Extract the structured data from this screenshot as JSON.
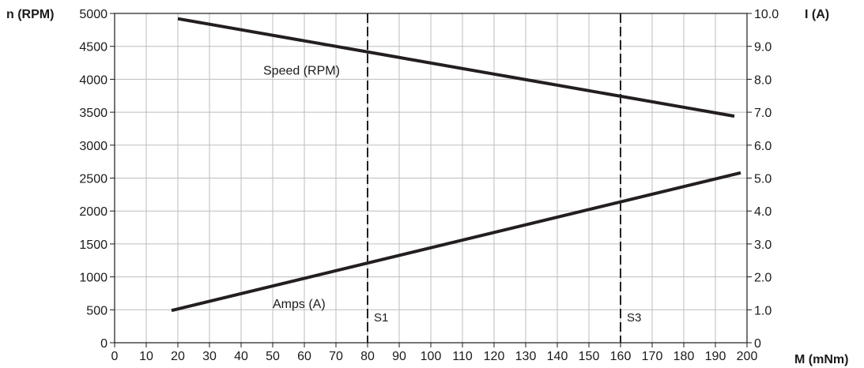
{
  "chart_data": {
    "type": "line",
    "xlabel": "M (mNm)",
    "ylabel_left": "n (RPM)",
    "ylabel_right": "I (A)",
    "xlim": [
      0,
      200
    ],
    "ylim_left": [
      0,
      5000
    ],
    "ylim_right": [
      0,
      10
    ],
    "x_ticks": [
      "0",
      "10",
      "20",
      "30",
      "40",
      "50",
      "60",
      "70",
      "80",
      "90",
      "100",
      "110",
      "120",
      "130",
      "140",
      "150",
      "160",
      "170",
      "180",
      "190",
      "200"
    ],
    "y_ticks_left": [
      "0",
      "500",
      "1000",
      "1500",
      "2000",
      "2500",
      "3000",
      "3500",
      "4000",
      "4500",
      "5000"
    ],
    "y_ticks_right": [
      "0",
      "1.0",
      "2.0",
      "3.0",
      "4.0",
      "5.0",
      "6.0",
      "7.0",
      "8.0",
      "9.0",
      "10.0"
    ],
    "grid": true,
    "series": [
      {
        "name": "Speed (RPM)",
        "axis": "left",
        "points": [
          [
            20,
            4920
          ],
          [
            196,
            3440
          ]
        ]
      },
      {
        "name": "Amps (A)",
        "axis": "right",
        "points": [
          [
            18,
            0.98
          ],
          [
            198,
            5.16
          ]
        ]
      }
    ],
    "markers": [
      {
        "label": "S1",
        "x": 80
      },
      {
        "label": "S3",
        "x": 160
      }
    ],
    "colors": {
      "line": "#231f20",
      "grid": "#bdbdbd",
      "axis": "#1a1a1a"
    }
  }
}
